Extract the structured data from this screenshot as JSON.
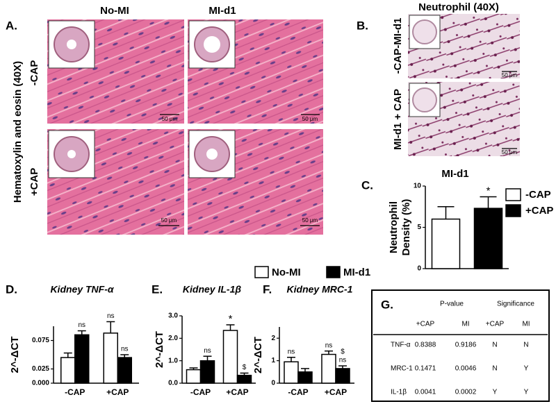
{
  "figure": {
    "panel_a": {
      "label": "A.",
      "columns": [
        "No-MI",
        "MI-d1"
      ],
      "stain": "Hematoxylin and eosin (40X)",
      "rows": [
        "-CAP",
        "+CAP"
      ],
      "scale_bars": [
        "50 μm",
        "50 μm",
        "50 μm",
        "50 μm"
      ]
    },
    "panel_b": {
      "label": "B.",
      "stain": "Neutrophil (40X)",
      "rows": [
        "-CAP-MI-d1",
        "MI-d1 + CAP"
      ],
      "scale_bars": [
        "50 μm",
        "50 μm"
      ]
    }
  },
  "chart_data": [
    {
      "type": "bar",
      "panel_label": "C.",
      "title": "MI-d1",
      "ylabel": [
        "Neutrophil",
        "Density (%)"
      ],
      "categories": [
        null
      ],
      "legend": "right",
      "series": [
        {
          "name": "-CAP",
          "color": "#ffffff",
          "values": [
            6.0
          ],
          "errors": [
            1.5
          ]
        },
        {
          "name": "+CAP",
          "color": "#000000",
          "values": [
            7.3
          ],
          "errors": [
            1.4
          ],
          "annotations": [
            [
              "*"
            ]
          ]
        }
      ],
      "ylim": [
        0,
        10
      ],
      "yticks": [
        0,
        5,
        10
      ]
    },
    {
      "type": "bar",
      "panel_label": "D.",
      "title": "Kidney TNF-α",
      "ylabel": "2^-ΔCT",
      "categories": [
        "-CAP",
        "+CAP"
      ],
      "legend": "top",
      "series": [
        {
          "name": "No-MI",
          "color": "#ffffff",
          "values": [
            0.045,
            0.088
          ],
          "errors": [
            0.008,
            0.02
          ],
          "annotations": [
            null,
            [
              "ns"
            ]
          ]
        },
        {
          "name": "MI-d1",
          "color": "#000000",
          "values": [
            0.085,
            0.045
          ],
          "errors": [
            0.007,
            0.005
          ],
          "annotations": [
            [
              "ns"
            ],
            [
              "ns"
            ]
          ]
        }
      ],
      "ylim": [
        0,
        0.1
      ],
      "yticks": [
        {
          "value": 0,
          "label": "0.000"
        },
        {
          "value": 0.025,
          "label": "0.025"
        },
        {
          "value": 0.075,
          "label": "0.075"
        }
      ]
    },
    {
      "type": "bar",
      "panel_label": "E.",
      "title": "Kidney IL-1β",
      "ylabel": "2^-ΔCT",
      "categories": [
        "-CAP",
        "+CAP"
      ],
      "series": [
        {
          "color": "#ffffff",
          "values": [
            0.6,
            2.35
          ],
          "errors": [
            0.08,
            0.25
          ],
          "annotations": [
            null,
            [
              "*"
            ]
          ]
        },
        {
          "color": "#000000",
          "values": [
            1.0,
            0.35
          ],
          "errors": [
            0.2,
            0.1
          ],
          "annotations": [
            [
              "ns"
            ],
            [
              "$"
            ]
          ]
        }
      ],
      "ylim": [
        0,
        3
      ],
      "yticks": [
        {
          "value": 0,
          "label": "0.0"
        },
        {
          "value": 1,
          "label": "1.0"
        },
        {
          "value": 2,
          "label": "2.0"
        },
        {
          "value": 3,
          "label": "3.0"
        }
      ]
    },
    {
      "type": "bar",
      "panel_label": "F.",
      "title": "Kidney MRC-1",
      "ylabel": "2^-ΔCT",
      "categories": [
        "-CAP",
        "+CAP"
      ],
      "series": [
        {
          "color": "#ffffff",
          "values": [
            0.95,
            1.28
          ],
          "errors": [
            0.2,
            0.15
          ],
          "annotations": [
            [
              "ns"
            ],
            [
              "ns"
            ]
          ]
        },
        {
          "color": "#000000",
          "values": [
            0.5,
            0.65
          ],
          "errors": [
            0.15,
            0.12
          ],
          "annotations": [
            null,
            [
              "$",
              "ns"
            ]
          ]
        }
      ],
      "ylim": [
        0,
        2.5
      ],
      "yticks": [
        0,
        1,
        2
      ]
    }
  ],
  "table": {
    "label": "G.",
    "groups": [
      "P-value",
      "Significance"
    ],
    "columns": [
      "+CAP",
      "MI",
      "+CAP",
      "MI"
    ],
    "rows": [
      [
        "TNF-α",
        "0.8388",
        "0.9186",
        "N",
        "N"
      ],
      [
        "MRC-1",
        "0.1471",
        "0.0046",
        "N",
        "Y"
      ],
      [
        "IL-1β",
        "0.0041",
        "0.0002",
        "Y",
        "Y"
      ]
    ]
  }
}
